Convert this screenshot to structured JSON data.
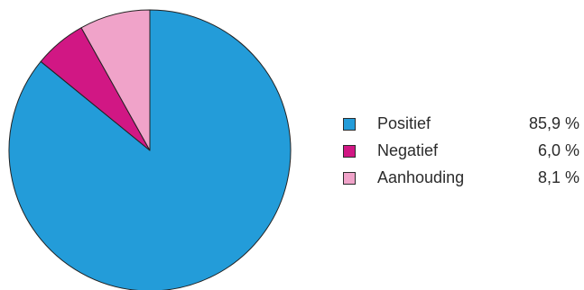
{
  "chart_data": {
    "type": "pie",
    "categories": [
      "Positief",
      "Negatief",
      "Aanhouding"
    ],
    "values": [
      85.9,
      6.0,
      8.1
    ],
    "value_labels": [
      "85,9 %",
      "6,0 %",
      "8,1 %"
    ],
    "colors": [
      "#239cd9",
      "#d11784",
      "#f0a3c9"
    ],
    "title": "",
    "legend": "right"
  }
}
